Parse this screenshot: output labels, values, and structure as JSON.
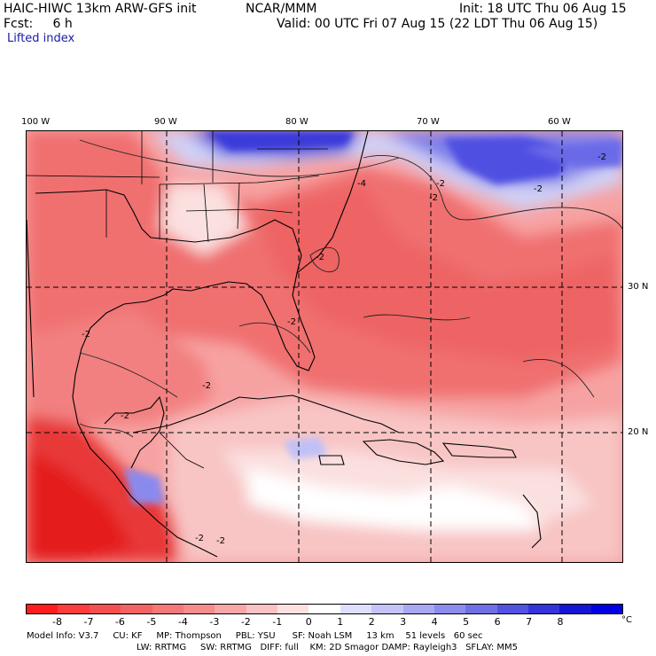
{
  "header": {
    "model": "HAIC-HIWC 13km ARW-GFS init",
    "org": "NCAR/MMM",
    "init": "Init: 18 UTC Thu 06 Aug 15",
    "fcst": "Fcst:     6 h",
    "valid": "Valid: 00 UTC Fri 07 Aug 15 (22 LDT Thu 06 Aug 15)",
    "field": "Lifted index"
  },
  "axes": {
    "lon_labels": [
      "100 W",
      "90 W",
      "80 W",
      "70 W",
      "60 W"
    ],
    "lat_labels": [
      "30 N",
      "20 N"
    ]
  },
  "colorbar": {
    "labels": [
      "-8",
      "-7",
      "-6",
      "-5",
      "-4",
      "-3",
      "-2",
      "-1",
      "0",
      "1",
      "2",
      "3",
      "4",
      "5",
      "6",
      "7",
      "8"
    ],
    "unit": "°C",
    "colors": [
      "#ff1c1c",
      "#ff3c3c",
      "#f45050",
      "#f26464",
      "#f47878",
      "#f68c8c",
      "#f8a6a6",
      "#fac2c2",
      "#fde0e0",
      "#ffffff",
      "#dedeff",
      "#c4c4fa",
      "#a8a8f4",
      "#8c8cee",
      "#7070e6",
      "#5252e0",
      "#3434da",
      "#1616d4",
      "#0000e0"
    ]
  },
  "contours": [
    "-4",
    "-2",
    "-2",
    "-2",
    "-2",
    "-2",
    "-2",
    "-2",
    "-2",
    "-2",
    "-2",
    "-2"
  ],
  "footer": {
    "line1": "Model Info: V3.7     CU: KF     MP: Thompson     PBL: YSU      SF: Noah LSM     13 km    51 levels   60 sec",
    "line2": "LW: RRTMG     SW: RRTMG   DIFF: full    KM: 2D Smagor DAMP: Rayleigh3   SFLAY: MM5"
  },
  "colors": {
    "title_blue": "#1a1aa6",
    "warm": "#f26060",
    "cool": "#2a2ae0"
  }
}
